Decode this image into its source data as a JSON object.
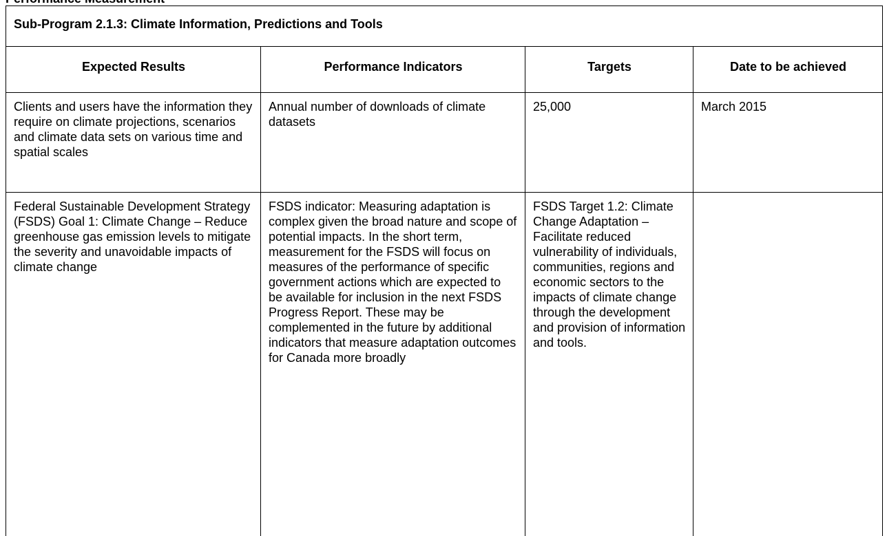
{
  "section_heading": "Performance Measurement",
  "table": {
    "title": "Sub-Program 2.1.3: Climate Information, Predictions and Tools",
    "headers": [
      "Expected Results",
      "Performance Indicators",
      "Targets",
      "Date to be achieved"
    ],
    "rows": [
      [
        "Clients and users have the information they require on climate projections, scenarios and climate data sets on various time and spatial scales",
        "Annual number of downloads of climate datasets",
        "25,000",
        "March 2015"
      ],
      [
        "Federal Sustainable Development Strategy (FSDS) Goal 1: Climate Change – Reduce greenhouse gas emission levels to mitigate the severity and unavoidable impacts of climate change",
        "FSDS indicator: Measuring adaptation is complex given the broad nature and scope of potential impacts. In the short term, measurement for the FSDS will focus on measures of the performance of specific government actions which are expected to be available for inclusion in the next FSDS Progress Report. These may be complemented in the future by additional indicators that measure adaptation outcomes for Canada more broadly",
        "FSDS Target 1.2: Climate Change Adaptation – Facilitate reduced vulnerability of individuals, communities, regions and economic sectors to the impacts of climate change through the development and provision of information and tools."
      ]
    ]
  }
}
